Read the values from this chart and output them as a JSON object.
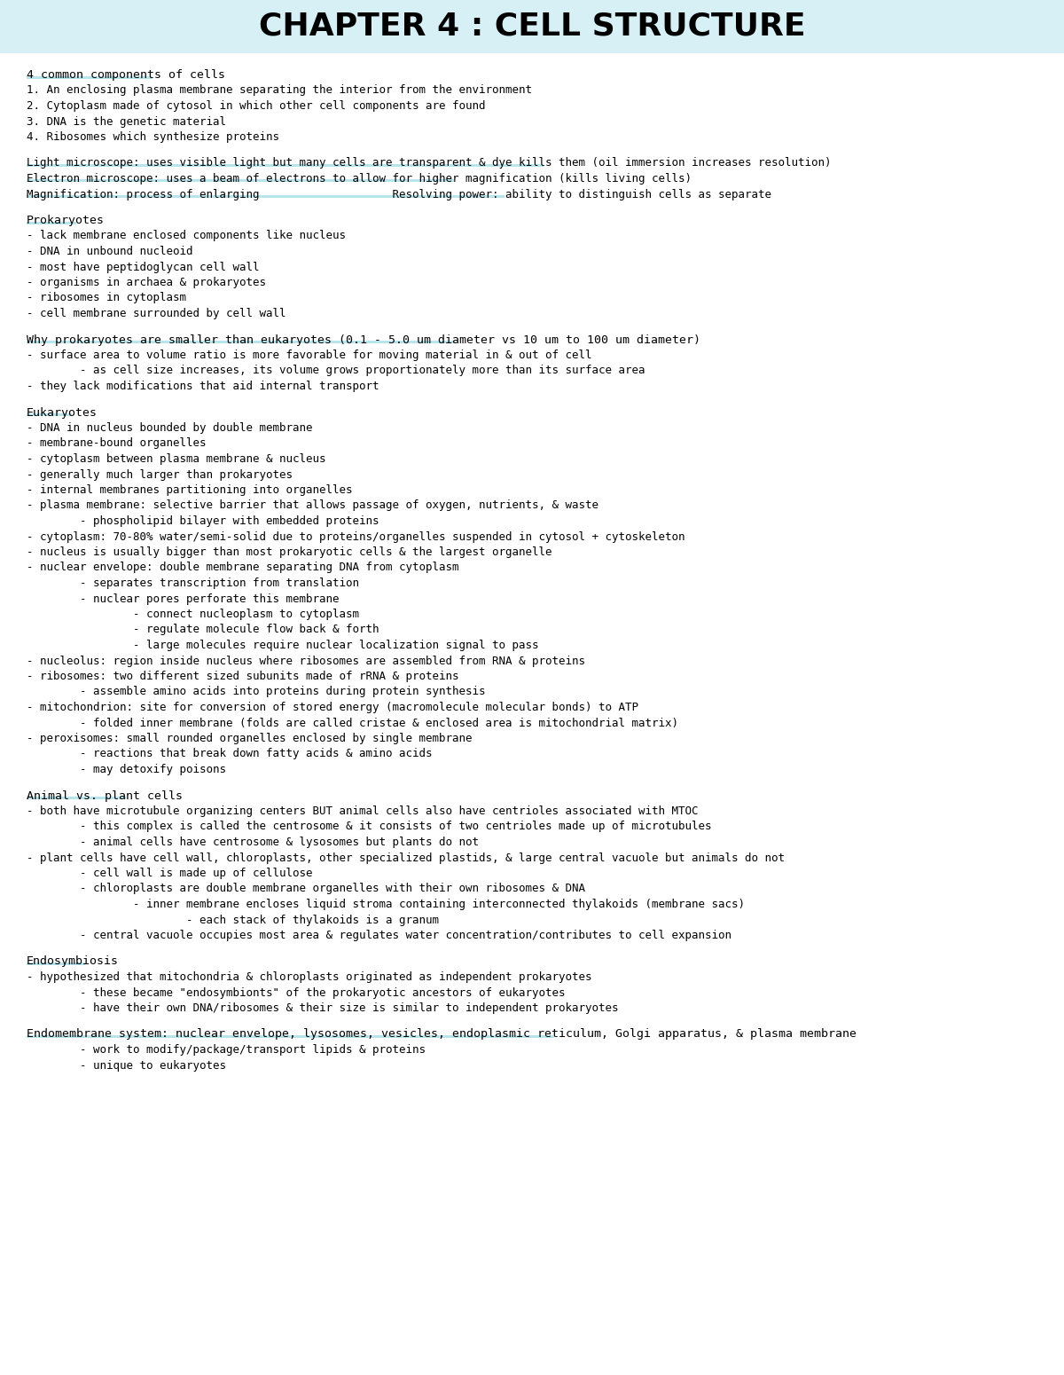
{
  "title": "CHAPTER 4 : CELL STRUCTURE",
  "bg_color": "#ffffff",
  "header_bg_color": "#d6f0f5",
  "highlight_color": "#b8e4ec",
  "sections": [
    {
      "type": "header",
      "text": "4 common components of cells",
      "highlight": true
    },
    {
      "type": "body",
      "text": "1. An enclosing plasma membrane separating the interior from the environment"
    },
    {
      "type": "body",
      "text": "2. Cytoplasm made of cytosol in which other cell components are found"
    },
    {
      "type": "body",
      "text": "3. DNA is the genetic material"
    },
    {
      "type": "body",
      "text": "4. Ribosomes which synthesize proteins"
    },
    {
      "type": "spacer"
    },
    {
      "type": "body",
      "text": "Light microscope: uses visible light but many cells are transparent & dye kills them (oil immersion increases resolution)",
      "highlight": true
    },
    {
      "type": "body",
      "text": "Electron microscope: uses a beam of electrons to allow for higher magnification (kills living cells)",
      "highlight": true
    },
    {
      "type": "body",
      "text": "Magnification: process of enlarging                    Resolving power: ability to distinguish cells as separate",
      "highlight": true
    },
    {
      "type": "spacer"
    },
    {
      "type": "header",
      "text": "Prokaryotes",
      "highlight": true
    },
    {
      "type": "body",
      "text": "- lack membrane enclosed components like nucleus"
    },
    {
      "type": "body",
      "text": "- DNA in unbound nucleoid"
    },
    {
      "type": "body",
      "text": "- most have peptidoglycan cell wall"
    },
    {
      "type": "body",
      "text": "- organisms in archaea & prokaryotes"
    },
    {
      "type": "body",
      "text": "- ribosomes in cytoplasm"
    },
    {
      "type": "body",
      "text": "- cell membrane surrounded by cell wall"
    },
    {
      "type": "spacer"
    },
    {
      "type": "header",
      "text": "Why prokaryotes are smaller than eukaryotes (0.1 - 5.0 um diameter vs 10 um to 100 um diameter)",
      "highlight": true
    },
    {
      "type": "body",
      "text": "- surface area to volume ratio is more favorable for moving material in & out of cell"
    },
    {
      "type": "body",
      "text": "        - as cell size increases, its volume grows proportionately more than its surface area"
    },
    {
      "type": "body",
      "text": "- they lack modifications that aid internal transport"
    },
    {
      "type": "spacer"
    },
    {
      "type": "header",
      "text": "Eukaryotes",
      "highlight": true
    },
    {
      "type": "body",
      "text": "- DNA in nucleus bounded by double membrane"
    },
    {
      "type": "body",
      "text": "- membrane-bound organelles"
    },
    {
      "type": "body",
      "text": "- cytoplasm between plasma membrane & nucleus"
    },
    {
      "type": "body",
      "text": "- generally much larger than prokaryotes"
    },
    {
      "type": "body",
      "text": "- internal membranes partitioning into organelles"
    },
    {
      "type": "body",
      "text": "- plasma membrane: selective barrier that allows passage of oxygen, nutrients, & waste"
    },
    {
      "type": "body",
      "text": "        - phospholipid bilayer with embedded proteins"
    },
    {
      "type": "body",
      "text": "- cytoplasm: 70-80% water/semi-solid due to proteins/organelles suspended in cytosol + cytoskeleton"
    },
    {
      "type": "body",
      "text": "- nucleus is usually bigger than most prokaryotic cells & the largest organelle"
    },
    {
      "type": "body",
      "text": "- nuclear envelope: double membrane separating DNA from cytoplasm"
    },
    {
      "type": "body",
      "text": "        - separates transcription from translation"
    },
    {
      "type": "body",
      "text": "        - nuclear pores perforate this membrane"
    },
    {
      "type": "body",
      "text": "                - connect nucleoplasm to cytoplasm"
    },
    {
      "type": "body",
      "text": "                - regulate molecule flow back & forth"
    },
    {
      "type": "body",
      "text": "                - large molecules require nuclear localization signal to pass"
    },
    {
      "type": "body",
      "text": "- nucleolus: region inside nucleus where ribosomes are assembled from RNA & proteins"
    },
    {
      "type": "body",
      "text": "- ribosomes: two different sized subunits made of rRNA & proteins"
    },
    {
      "type": "body",
      "text": "        - assemble amino acids into proteins during protein synthesis"
    },
    {
      "type": "body",
      "text": "- mitochondrion: site for conversion of stored energy (macromolecule molecular bonds) to ATP"
    },
    {
      "type": "body",
      "text": "        - folded inner membrane (folds are called cristae & enclosed area is mitochondrial matrix)"
    },
    {
      "type": "body",
      "text": "- peroxisomes: small rounded organelles enclosed by single membrane"
    },
    {
      "type": "body",
      "text": "        - reactions that break down fatty acids & amino acids"
    },
    {
      "type": "body",
      "text": "        - may detoxify poisons"
    },
    {
      "type": "spacer"
    },
    {
      "type": "header",
      "text": "Animal vs. plant cells",
      "highlight": true
    },
    {
      "type": "body",
      "text": "- both have microtubule organizing centers BUT animal cells also have centrioles associated with MTOC"
    },
    {
      "type": "body",
      "text": "        - this complex is called the centrosome & it consists of two centrioles made up of microtubules"
    },
    {
      "type": "body",
      "text": "        - animal cells have centrosome & lysosomes but plants do not"
    },
    {
      "type": "body",
      "text": "- plant cells have cell wall, chloroplasts, other specialized plastids, & large central vacuole but animals do not"
    },
    {
      "type": "body",
      "text": "        - cell wall is made up of cellulose"
    },
    {
      "type": "body",
      "text": "        - chloroplasts are double membrane organelles with their own ribosomes & DNA"
    },
    {
      "type": "body",
      "text": "                - inner membrane encloses liquid stroma containing interconnected thylakoids (membrane sacs)"
    },
    {
      "type": "body",
      "text": "                        - each stack of thylakoids is a granum"
    },
    {
      "type": "body",
      "text": "        - central vacuole occupies most area & regulates water concentration/contributes to cell expansion"
    },
    {
      "type": "spacer"
    },
    {
      "type": "header",
      "text": "Endosymbiosis",
      "highlight": true
    },
    {
      "type": "body",
      "text": "- hypothesized that mitochondria & chloroplasts originated as independent prokaryotes"
    },
    {
      "type": "body",
      "text": "        - these became \"endosymbionts\" of the prokaryotic ancestors of eukaryotes"
    },
    {
      "type": "body",
      "text": "        - have their own DNA/ribosomes & their size is similar to independent prokaryotes"
    },
    {
      "type": "spacer"
    },
    {
      "type": "header",
      "text": "Endomembrane system: nuclear envelope, lysosomes, vesicles, endoplasmic reticulum, Golgi apparatus, & plasma membrane",
      "highlight": true
    },
    {
      "type": "body",
      "text": "        - work to modify/package/transport lipids & proteins"
    },
    {
      "type": "body",
      "text": "        - unique to eukaryotes"
    }
  ]
}
